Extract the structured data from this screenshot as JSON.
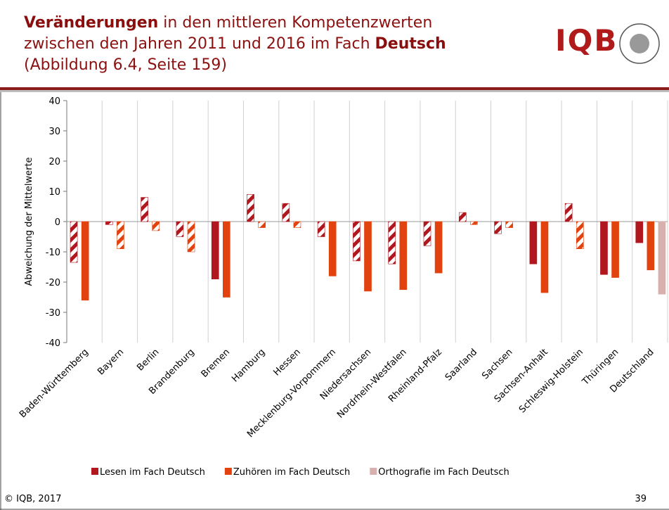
{
  "header": {
    "title_lines": [
      [
        "Veränderungen",
        " in den mittleren Kompetenzwerten"
      ],
      [
        "zwischen den Jahren 2011 und 2016 im Fach ",
        "Deutsch"
      ],
      [
        "(Abbildung 6.4, Seite 159)"
      ]
    ],
    "logo": "IQB"
  },
  "footer": {
    "copyright": "© IQB, 2017",
    "page": "39"
  },
  "chart_data": {
    "type": "bar",
    "y_label": "Abweichung der Mittelwerte",
    "categories": [
      "Baden-Württemberg",
      "Bayern",
      "Berlin",
      "Brandenburg",
      "Bremen",
      "Hamburg",
      "Hessen",
      "Mecklenburg-Vorpommern",
      "Niedersachsen",
      "Nordrhein-Westfalen",
      "Rheinland-Pfalz",
      "Saarland",
      "Sachsen",
      "Sachsen-Anhalt",
      "Schleswig-Holstein",
      "Thüringen",
      "Deutschland"
    ],
    "series": [
      {
        "name": "Lesen im Fach Deutsch",
        "color": "#b0171f",
        "values": [
          -13.5,
          -1,
          8,
          -5,
          -19,
          9,
          6,
          -5,
          -13,
          -14,
          -8,
          3,
          -4,
          -14,
          6,
          -17.5,
          -7
        ],
        "significant": [
          false,
          false,
          false,
          false,
          true,
          false,
          false,
          false,
          false,
          false,
          false,
          false,
          false,
          true,
          false,
          true,
          true
        ]
      },
      {
        "name": "Zuhören im Fach Deutsch",
        "color": "#e2420d",
        "values": [
          -26,
          -9,
          -3,
          -10,
          -25,
          -2,
          -2,
          -18,
          -23,
          -22.5,
          -17,
          -1,
          -2,
          -23.5,
          -9,
          -18.5,
          -16
        ],
        "significant": [
          true,
          false,
          false,
          false,
          true,
          false,
          false,
          true,
          true,
          true,
          true,
          false,
          false,
          true,
          false,
          true,
          true
        ]
      },
      {
        "name": "Orthografie im Fach Deutsch",
        "color": "#d8b1ae",
        "values": [
          null,
          null,
          null,
          null,
          null,
          null,
          null,
          null,
          null,
          null,
          null,
          null,
          null,
          null,
          null,
          null,
          -24
        ],
        "significant": [
          null,
          null,
          null,
          null,
          null,
          null,
          null,
          null,
          null,
          null,
          null,
          null,
          null,
          null,
          null,
          null,
          true
        ]
      }
    ],
    "ylim": [
      -40,
      40
    ],
    "yticks": [
      -40,
      -30,
      -20,
      -10,
      0,
      10,
      20,
      30,
      40
    ],
    "grid": false,
    "legend": "bottom"
  }
}
